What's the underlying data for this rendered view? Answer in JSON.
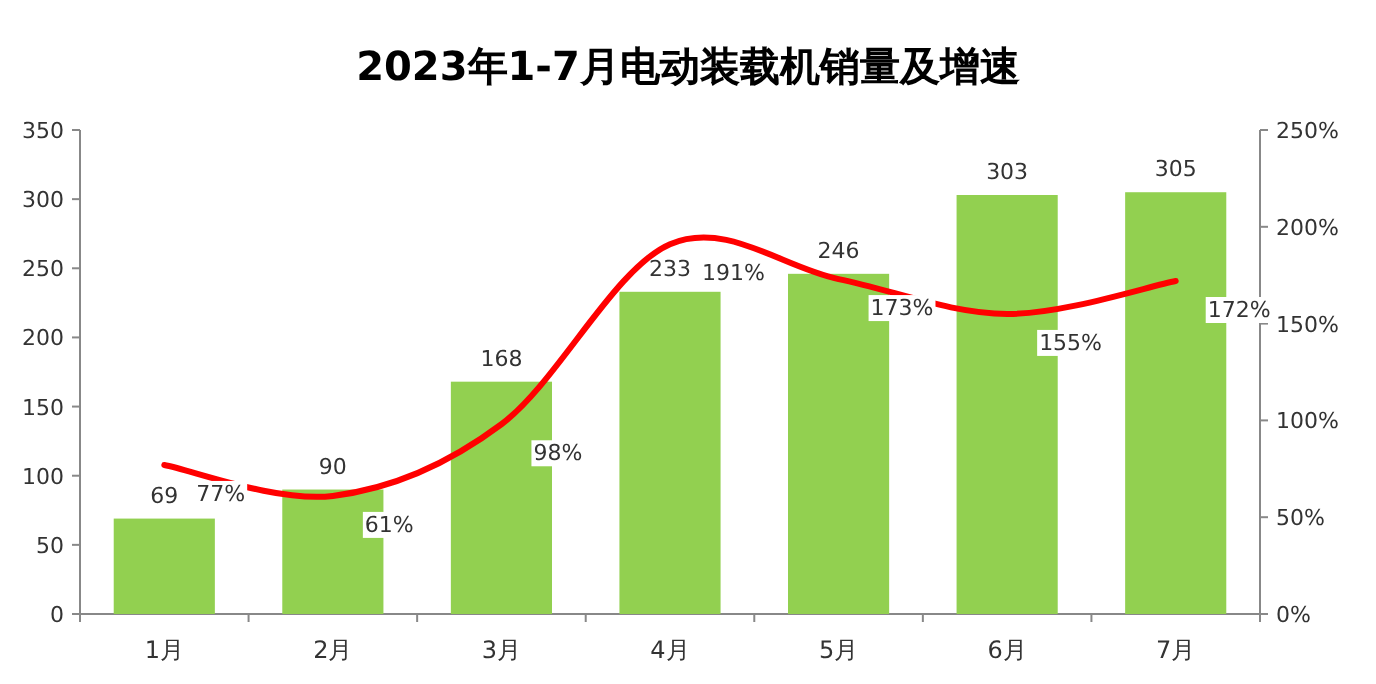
{
  "chart_data": {
    "type": "bar",
    "title": "2023年1-7月电动装载机销量及增速",
    "categories": [
      "1月",
      "2月",
      "3月",
      "4月",
      "5月",
      "6月",
      "7月"
    ],
    "series": [
      {
        "color": "#92d050",
        "values": [
          69,
          90,
          168,
          233,
          246,
          303,
          305
        ],
        "value_labels": [
          "69",
          "90",
          "168",
          "233",
          "246",
          "303",
          "305"
        ]
      },
      {
        "type": "line",
        "axis": "y2",
        "color": "#ff0000",
        "values": [
          77,
          61,
          98,
          191,
          173,
          155,
          172
        ],
        "value_labels": [
          "77%",
          "61%",
          "98%",
          "191%",
          "173%",
          "155%",
          "172%"
        ]
      }
    ],
    "ylim": [
      0,
      350
    ],
    "yticks": [
      0,
      50,
      100,
      150,
      200,
      250,
      300,
      350
    ],
    "y2lim": [
      0,
      250
    ],
    "y2ticks": [
      {
        "value": 0,
        "label": "0%"
      },
      {
        "value": 50,
        "label": "50%"
      },
      {
        "value": 100,
        "label": "100%"
      },
      {
        "value": 150,
        "label": "150%"
      },
      {
        "value": 200,
        "label": "200%"
      },
      {
        "value": 250,
        "label": "250%"
      }
    ]
  }
}
